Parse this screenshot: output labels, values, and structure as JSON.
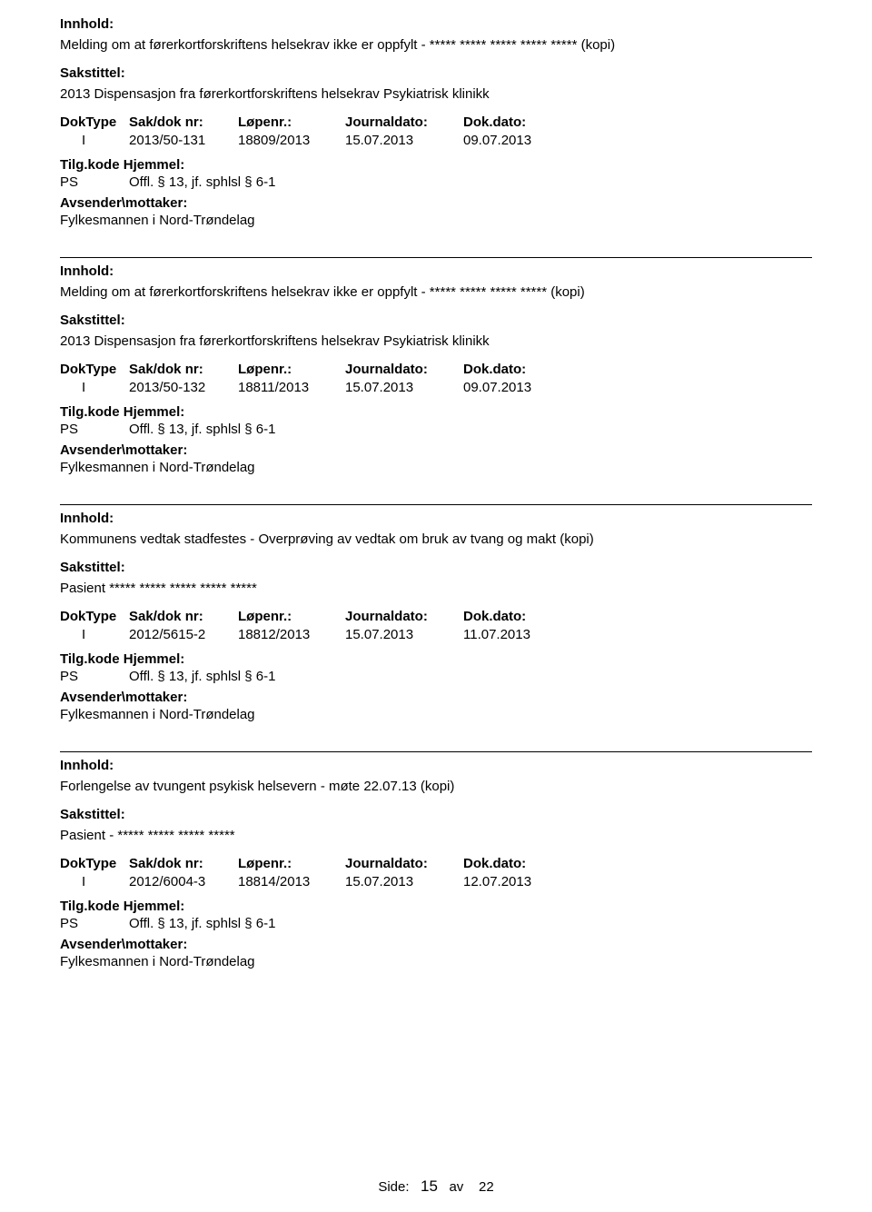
{
  "labels": {
    "innhold": "Innhold:",
    "sakstittel": "Sakstittel:",
    "doktype": "DokType",
    "saknr": "Sak/dok nr:",
    "lopenr": "Løpenr.:",
    "journaldato": "Journaldato:",
    "dokdato": "Dok.dato:",
    "tilgkode": "Tilg.kode",
    "hjemmel": "Hjemmel:",
    "avsender": "Avsender\\mottaker:",
    "side": "Side:",
    "av": "av"
  },
  "page": {
    "current": "15",
    "total": "22"
  },
  "records": [
    {
      "innhold": "Melding om at førerkortforskriftens helsekrav ikke er oppfylt - ***** ***** ***** ***** ***** (kopi)",
      "sakstittel": "2013 Dispensasjon fra førerkortforskriftens helsekrav Psykiatrisk klinikk",
      "doktype": "I",
      "saknr": "2013/50-131",
      "lopenr": "18809/2013",
      "journaldato": "15.07.2013",
      "dokdato": "09.07.2013",
      "tilgkode": "PS",
      "hjemmel": "Offl. § 13, jf. sphlsl § 6-1",
      "avsender": "Fylkesmannen i Nord-Trøndelag"
    },
    {
      "innhold": "Melding om at førerkortforskriftens helsekrav ikke er oppfylt - ***** ***** ***** ***** (kopi)",
      "sakstittel": "2013 Dispensasjon fra førerkortforskriftens helsekrav Psykiatrisk klinikk",
      "doktype": "I",
      "saknr": "2013/50-132",
      "lopenr": "18811/2013",
      "journaldato": "15.07.2013",
      "dokdato": "09.07.2013",
      "tilgkode": "PS",
      "hjemmel": "Offl. § 13, jf. sphlsl § 6-1",
      "avsender": "Fylkesmannen i Nord-Trøndelag"
    },
    {
      "innhold": "Kommunens vedtak stadfestes - Overprøving av vedtak om bruk av tvang og makt (kopi)",
      "sakstittel": "Pasient ***** ***** ***** ***** *****",
      "doktype": "I",
      "saknr": "2012/5615-2",
      "lopenr": "18812/2013",
      "journaldato": "15.07.2013",
      "dokdato": "11.07.2013",
      "tilgkode": "PS",
      "hjemmel": "Offl. § 13, jf. sphlsl § 6-1",
      "avsender": "Fylkesmannen i Nord-Trøndelag"
    },
    {
      "innhold": "Forlengelse av tvungent psykisk helsevern - møte 22.07.13 (kopi)",
      "sakstittel": "Pasient - ***** ***** ***** *****",
      "doktype": "I",
      "saknr": "2012/6004-3",
      "lopenr": "18814/2013",
      "journaldato": "15.07.2013",
      "dokdato": "12.07.2013",
      "tilgkode": "PS",
      "hjemmel": "Offl. § 13, jf. sphlsl § 6-1",
      "avsender": "Fylkesmannen i Nord-Trøndelag"
    }
  ]
}
